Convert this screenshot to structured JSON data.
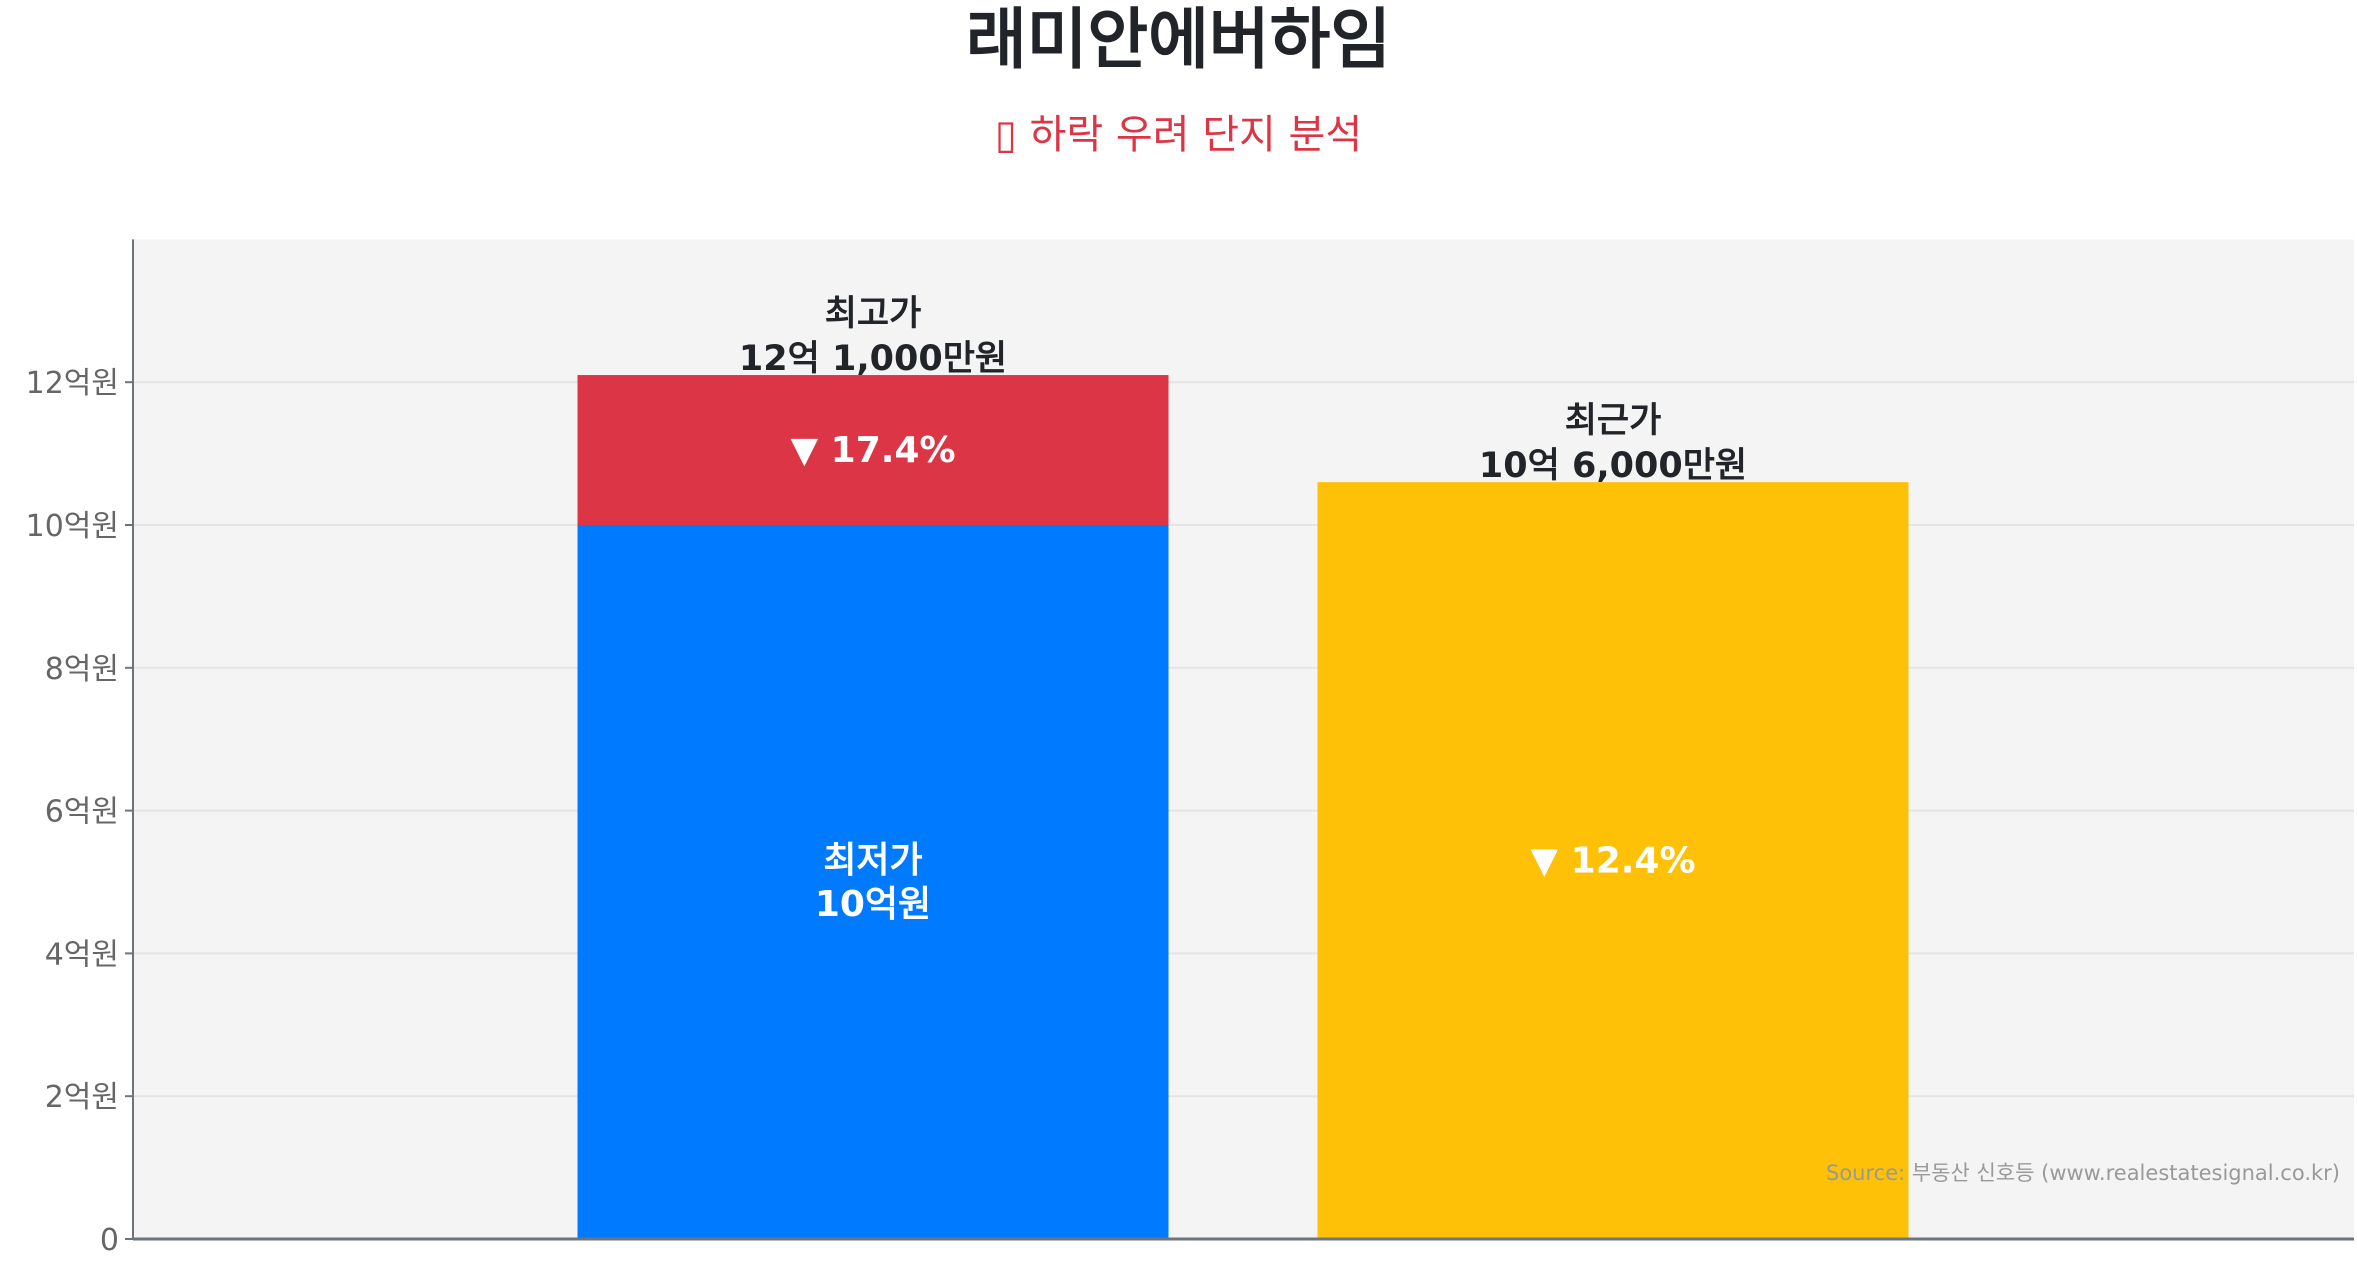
{
  "chart_data": {
    "type": "bar",
    "title": "래미안에버하임",
    "subtitle": "▯ 하락 우려 단지 분석",
    "ylim": [
      0,
      14
    ],
    "yticks": [
      0,
      2,
      4,
      6,
      8,
      10,
      12
    ],
    "ytick_labels": [
      "0",
      "2억원",
      "4억원",
      "6억원",
      "8억원",
      "10억원",
      "12억원"
    ],
    "grid": true,
    "bars": [
      {
        "segments": [
          {
            "name": "최저가",
            "from": 0,
            "to": 10,
            "color": "#007bff",
            "label": [
              "최저가",
              "10억원"
            ]
          },
          {
            "name": "최고가",
            "from": 10,
            "to": 12.1,
            "color": "#dc3545",
            "label": [
              "▼ 17.4%"
            ]
          }
        ],
        "top_label": [
          "최고가",
          "12억 1,000만원"
        ]
      },
      {
        "segments": [
          {
            "name": "최근가",
            "from": 0,
            "to": 10.6,
            "color": "#ffc107",
            "label": [
              "▼ 12.4%"
            ]
          }
        ],
        "top_label": [
          "최근가",
          "10억 6,000만원"
        ]
      }
    ],
    "source": "Source: 부동산 신호등 (www.realestatesignal.co.kr)"
  }
}
